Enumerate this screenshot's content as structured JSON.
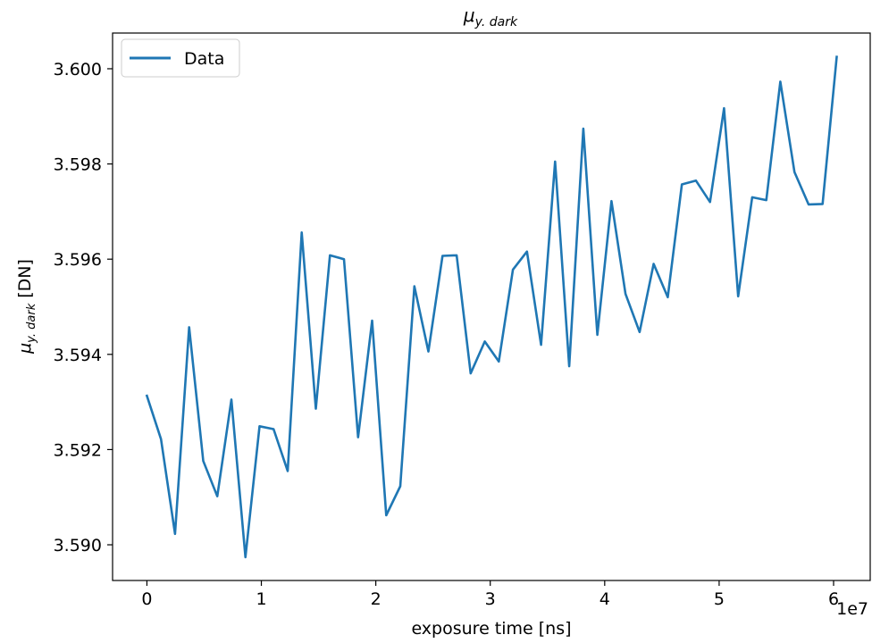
{
  "chart_data": {
    "type": "line",
    "title": "μy. dark",
    "title_main": "μ",
    "title_sub": "y. dark",
    "xlabel": "exposure time [ns]",
    "ylabel_main": "μ",
    "ylabel_sub": "y. dark",
    "ylabel_unit": "[DN]",
    "x_offset_label": "1e7",
    "xlim": [
      -3000000,
      63200000
    ],
    "ylim": [
      3.58925,
      3.60075
    ],
    "x_ticks": [
      0,
      10000000,
      20000000,
      30000000,
      40000000,
      50000000,
      60000000
    ],
    "x_tick_labels": [
      "0",
      "1",
      "2",
      "3",
      "4",
      "5",
      "6"
    ],
    "y_ticks": [
      3.59,
      3.592,
      3.594,
      3.596,
      3.598,
      3.6
    ],
    "y_tick_labels": [
      "3.590",
      "3.592",
      "3.594",
      "3.596",
      "3.598",
      "3.600"
    ],
    "grid": false,
    "legend": {
      "position": "upper-left",
      "entries": [
        "Data"
      ]
    },
    "series": [
      {
        "name": "Data",
        "color": "#1f77b4",
        "x": [
          0,
          1230000,
          2460000,
          3690000,
          4920000,
          6150000,
          7380000,
          8610000,
          9840000,
          11070000,
          12300000,
          13530000,
          14760000,
          15990000,
          17220000,
          18450000,
          19680000,
          20910000,
          22140000,
          23370000,
          24600000,
          25830000,
          27060000,
          28290000,
          29520000,
          30750000,
          31980000,
          33210000,
          34440000,
          35670000,
          36900000,
          38130000,
          39360000,
          40590000,
          41820000,
          43050000,
          44280000,
          45510000,
          46740000,
          47970000,
          49200000,
          50430000,
          51660000,
          52890000,
          54120000,
          55350000,
          56580000,
          57810000,
          59040000,
          60270000
        ],
        "values": [
          3.59313,
          3.59222,
          3.59023,
          3.59457,
          3.59176,
          3.59102,
          3.59305,
          3.58974,
          3.59249,
          3.59243,
          3.59155,
          3.59656,
          3.59286,
          3.59608,
          3.596,
          3.59226,
          3.59471,
          3.59062,
          3.59123,
          3.59543,
          3.59406,
          3.59607,
          3.59608,
          3.5936,
          3.59427,
          3.59385,
          3.59578,
          3.59616,
          3.5942,
          3.59805,
          3.59375,
          3.59874,
          3.59441,
          3.59722,
          3.59527,
          3.59447,
          3.5959,
          3.5952,
          3.59757,
          3.59765,
          3.5972,
          3.59917,
          3.59522,
          3.5973,
          3.59724,
          3.59973,
          3.59783,
          3.59715,
          3.59716,
          3.60025
        ]
      }
    ]
  }
}
